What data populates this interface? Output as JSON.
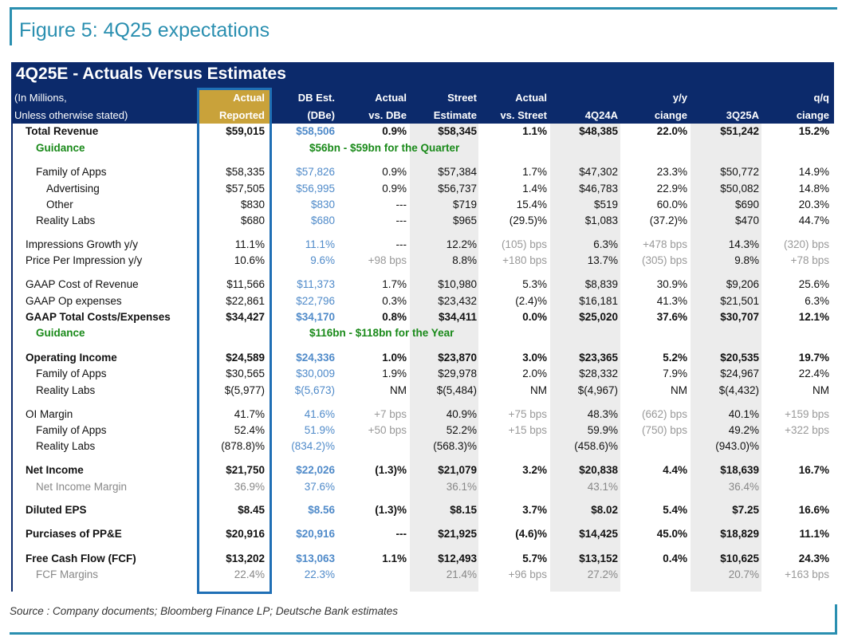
{
  "header": {
    "title": "Figure 5: 4Q25 expectations"
  },
  "table": {
    "title": "4Q25E - Actuals Versus Estimates",
    "stub_header": [
      "(In Millions,",
      "Unless otherwise stated)"
    ],
    "columns": [
      [
        "Actual",
        "Reported"
      ],
      [
        "DB Est.",
        "(DBe)"
      ],
      [
        "Actual",
        "vs. DBe"
      ],
      [
        "Street",
        "Estimate"
      ],
      [
        "Actual",
        "vs. Street"
      ],
      [
        "4Q24A"
      ],
      [
        "y/y",
        "ciange"
      ],
      [
        "3Q25A"
      ],
      [
        "q/q",
        "ciange"
      ]
    ],
    "rows": [
      {
        "label": "Total Revenue",
        "values": [
          "$59,015",
          "$58,506",
          "0.9%",
          "$58,345",
          "1.1%",
          "$48,385",
          "22.0%",
          "$51,242",
          "15.2%"
        ]
      },
      {
        "label": "Guidance",
        "note": "$56bn - $59bn for the Quarter"
      },
      {
        "label": "Family of Apps",
        "values": [
          "$58,335",
          "$57,826",
          "0.9%",
          "$57,384",
          "1.7%",
          "$47,302",
          "23.3%",
          "$50,772",
          "14.9%"
        ]
      },
      {
        "label": "Advertising",
        "values": [
          "$57,505",
          "$56,995",
          "0.9%",
          "$56,737",
          "1.4%",
          "$46,783",
          "22.9%",
          "$50,082",
          "14.8%"
        ]
      },
      {
        "label": "Other",
        "values": [
          "$830",
          "$830",
          "---",
          "$719",
          "15.4%",
          "$519",
          "60.0%",
          "$690",
          "20.3%"
        ]
      },
      {
        "label": "Reality Labs",
        "values": [
          "$680",
          "$680",
          "---",
          "$965",
          "(29.5)%",
          "$1,083",
          "(37.2)%",
          "$470",
          "44.7%"
        ]
      },
      {
        "label": "Impressions Growth y/y",
        "values": [
          "11.1%",
          "11.1%",
          "---",
          "12.2%",
          "(105) bps",
          "6.3%",
          "+478 bps",
          "14.3%",
          "(320) bps"
        ]
      },
      {
        "label": "Price Per Impression y/y",
        "values": [
          "10.6%",
          "9.6%",
          "+98 bps",
          "8.8%",
          "+180 bps",
          "13.7%",
          "(305) bps",
          "9.8%",
          "+78 bps"
        ]
      },
      {
        "label": "GAAP Cost of Revenue",
        "values": [
          "$11,566",
          "$11,373",
          "1.7%",
          "$10,980",
          "5.3%",
          "$8,839",
          "30.9%",
          "$9,206",
          "25.6%"
        ]
      },
      {
        "label": "GAAP Op expenses",
        "values": [
          "$22,861",
          "$22,796",
          "0.3%",
          "$23,432",
          "(2.4)%",
          "$16,181",
          "41.3%",
          "$21,501",
          "6.3%"
        ]
      },
      {
        "label": "GAAP Total Costs/Expenses",
        "values": [
          "$34,427",
          "$34,170",
          "0.8%",
          "$34,411",
          "0.0%",
          "$25,020",
          "37.6%",
          "$30,707",
          "12.1%"
        ]
      },
      {
        "label": "Guidance",
        "note": "$116bn - $118bn for the Year"
      },
      {
        "label": "Operating Income",
        "values": [
          "$24,589",
          "$24,336",
          "1.0%",
          "$23,870",
          "3.0%",
          "$23,365",
          "5.2%",
          "$20,535",
          "19.7%"
        ]
      },
      {
        "label": "Family of Apps",
        "values": [
          "$30,565",
          "$30,009",
          "1.9%",
          "$29,978",
          "2.0%",
          "$28,332",
          "7.9%",
          "$24,967",
          "22.4%"
        ]
      },
      {
        "label": "Reality Labs",
        "values": [
          "$(5,977)",
          "$(5,673)",
          "NM",
          "$(5,484)",
          "NM",
          "$(4,967)",
          "NM",
          "$(4,432)",
          "NM"
        ]
      },
      {
        "label": "OI Margin",
        "values": [
          "41.7%",
          "41.6%",
          "+7 bps",
          "40.9%",
          "+75 bps",
          "48.3%",
          "(662) bps",
          "40.1%",
          "+159 bps"
        ]
      },
      {
        "label": "Family of Apps",
        "values": [
          "52.4%",
          "51.9%",
          "+50 bps",
          "52.2%",
          "+15 bps",
          "59.9%",
          "(750) bps",
          "49.2%",
          "+322 bps"
        ]
      },
      {
        "label": "Reality Labs",
        "values": [
          "(878.8)%",
          "(834.2)%",
          null,
          "(568.3)%",
          null,
          "(458.6)%",
          null,
          "(943.0)%",
          null
        ]
      },
      {
        "label": "Net Income",
        "values": [
          "$21,750",
          "$22,026",
          "(1.3)%",
          "$21,079",
          "3.2%",
          "$20,838",
          "4.4%",
          "$18,639",
          "16.7%"
        ]
      },
      {
        "label": "Net Income Margin",
        "values": [
          "36.9%",
          "37.6%",
          null,
          "36.1%",
          null,
          "43.1%",
          null,
          "36.4%",
          null
        ]
      },
      {
        "label": "Diluted EPS",
        "values": [
          "$8.45",
          "$8.56",
          "(1.3)%",
          "$8.15",
          "3.7%",
          "$8.02",
          "5.4%",
          "$7.25",
          "16.6%"
        ]
      },
      {
        "label": "Purciases of PP&E",
        "values": [
          "$20,916",
          "$20,916",
          "---",
          "$21,925",
          "(4.6)%",
          "$14,425",
          "45.0%",
          "$18,829",
          "11.1%"
        ]
      },
      {
        "label": "Free Cash Flow (FCF)",
        "values": [
          "$13,202",
          "$13,063",
          "1.1%",
          "$12,493",
          "5.7%",
          "$13,152",
          "0.4%",
          "$10,625",
          "24.3%"
        ]
      },
      {
        "label": "FCF Margins",
        "values": [
          "22.4%",
          "22.3%",
          null,
          "21.4%",
          "+96 bps",
          "27.2%",
          null,
          "20.7%",
          "+163 bps"
        ]
      }
    ]
  },
  "footer": {
    "source": "Source : Company documents; Bloomberg Finance LP; Deutsche Bank estimates"
  }
}
